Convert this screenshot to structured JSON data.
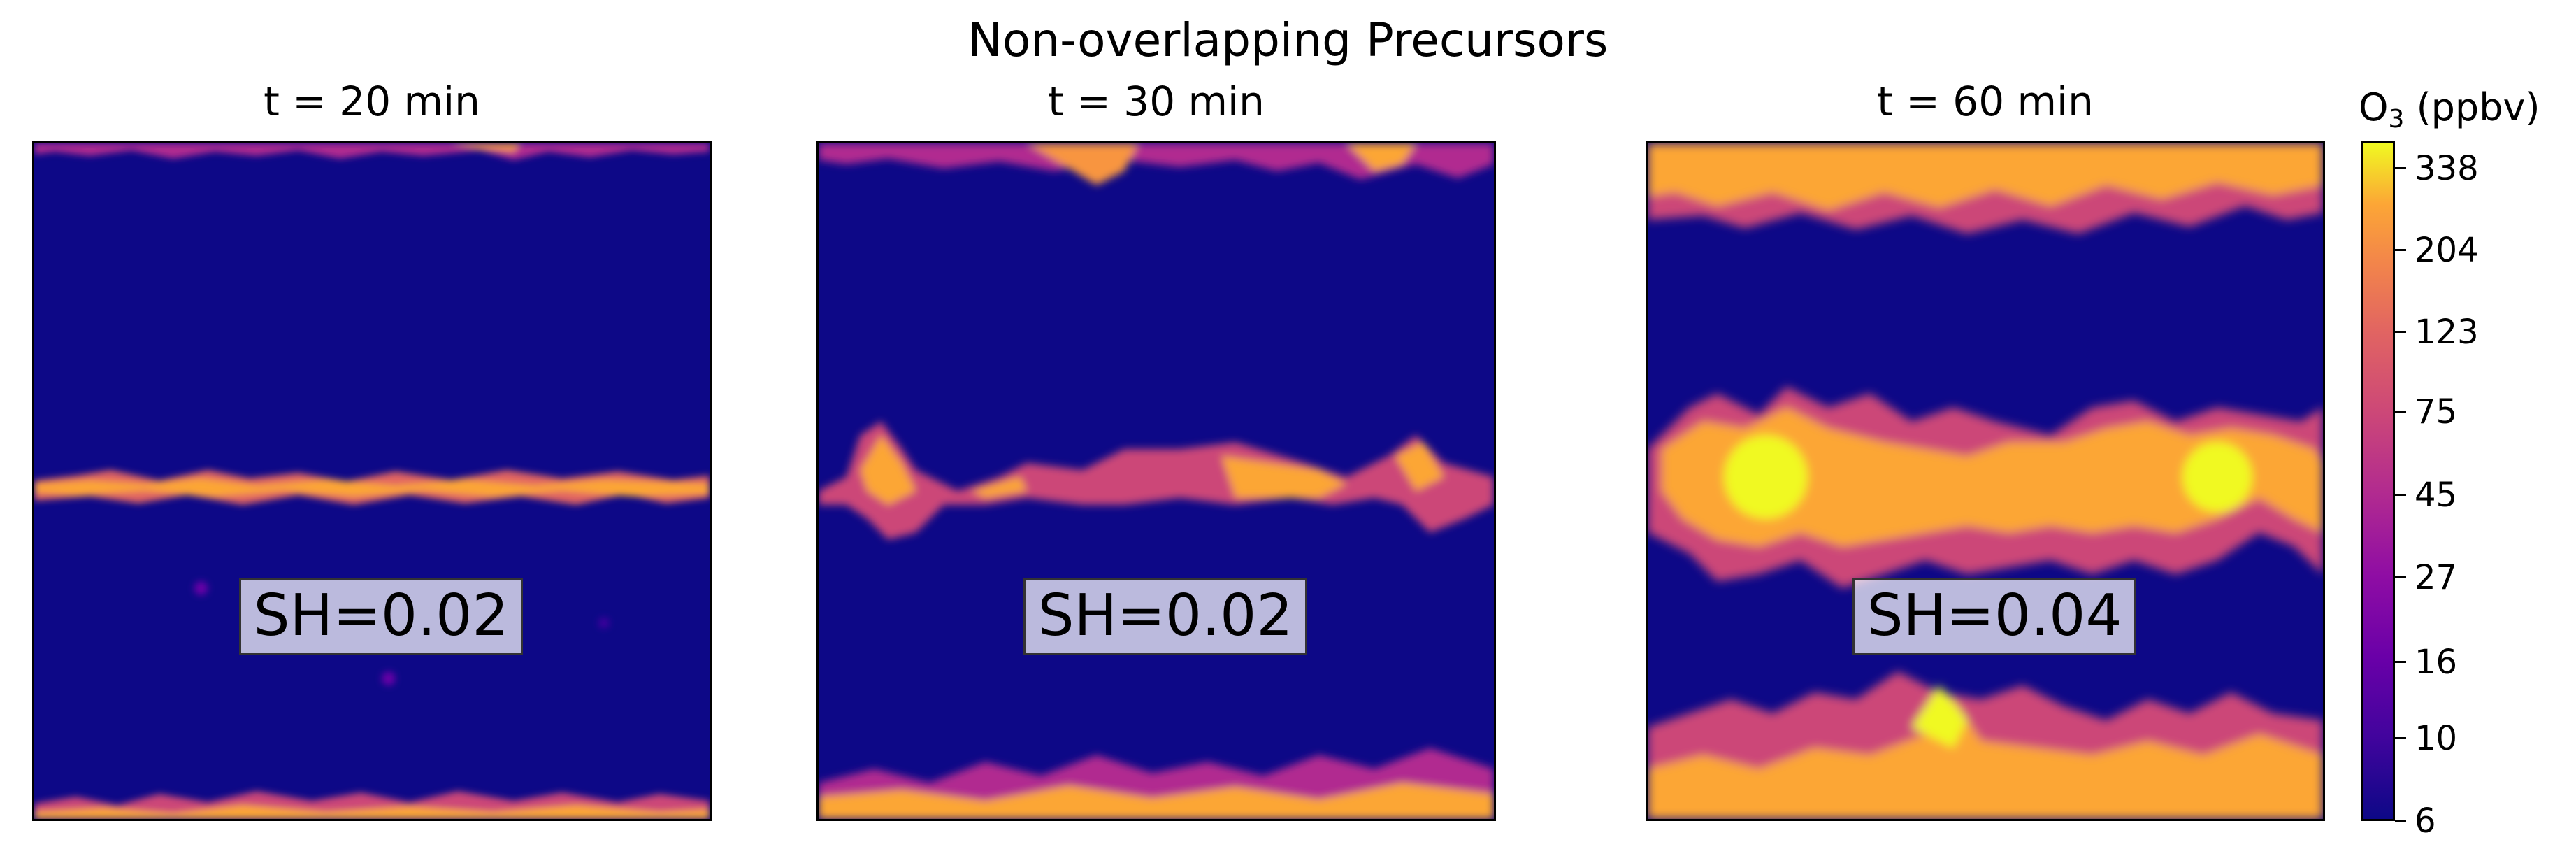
{
  "suptitle": "Non-overlapping Precursors",
  "chart_data": [
    {
      "type": "heatmap",
      "title": "t = 20 min",
      "annotation": "SH=0.02",
      "features": [
        {
          "region": "center band",
          "intensity": "high"
        },
        {
          "region": "top edge",
          "intensity": "low"
        },
        {
          "region": "bottom edge",
          "intensity": "medium"
        }
      ]
    },
    {
      "type": "heatmap",
      "title": "t = 30 min",
      "annotation": "SH=0.02",
      "features": [
        {
          "region": "center band",
          "intensity": "high"
        },
        {
          "region": "top edge",
          "intensity": "medium"
        },
        {
          "region": "bottom edge",
          "intensity": "medium"
        }
      ]
    },
    {
      "type": "heatmap",
      "title": "t = 60 min",
      "annotation": "SH=0.04",
      "features": [
        {
          "region": "center band",
          "intensity": "high"
        },
        {
          "region": "top edge",
          "intensity": "high"
        },
        {
          "region": "bottom edge",
          "intensity": "high"
        }
      ]
    }
  ],
  "colorbar": {
    "label_main": "O",
    "label_sub": "3",
    "label_unit": " (ppbv)",
    "colormap": "plasma",
    "scale": "log",
    "range": [
      6,
      400
    ],
    "ticks": [
      6,
      10,
      16,
      27,
      45,
      75,
      123,
      204,
      338
    ]
  }
}
